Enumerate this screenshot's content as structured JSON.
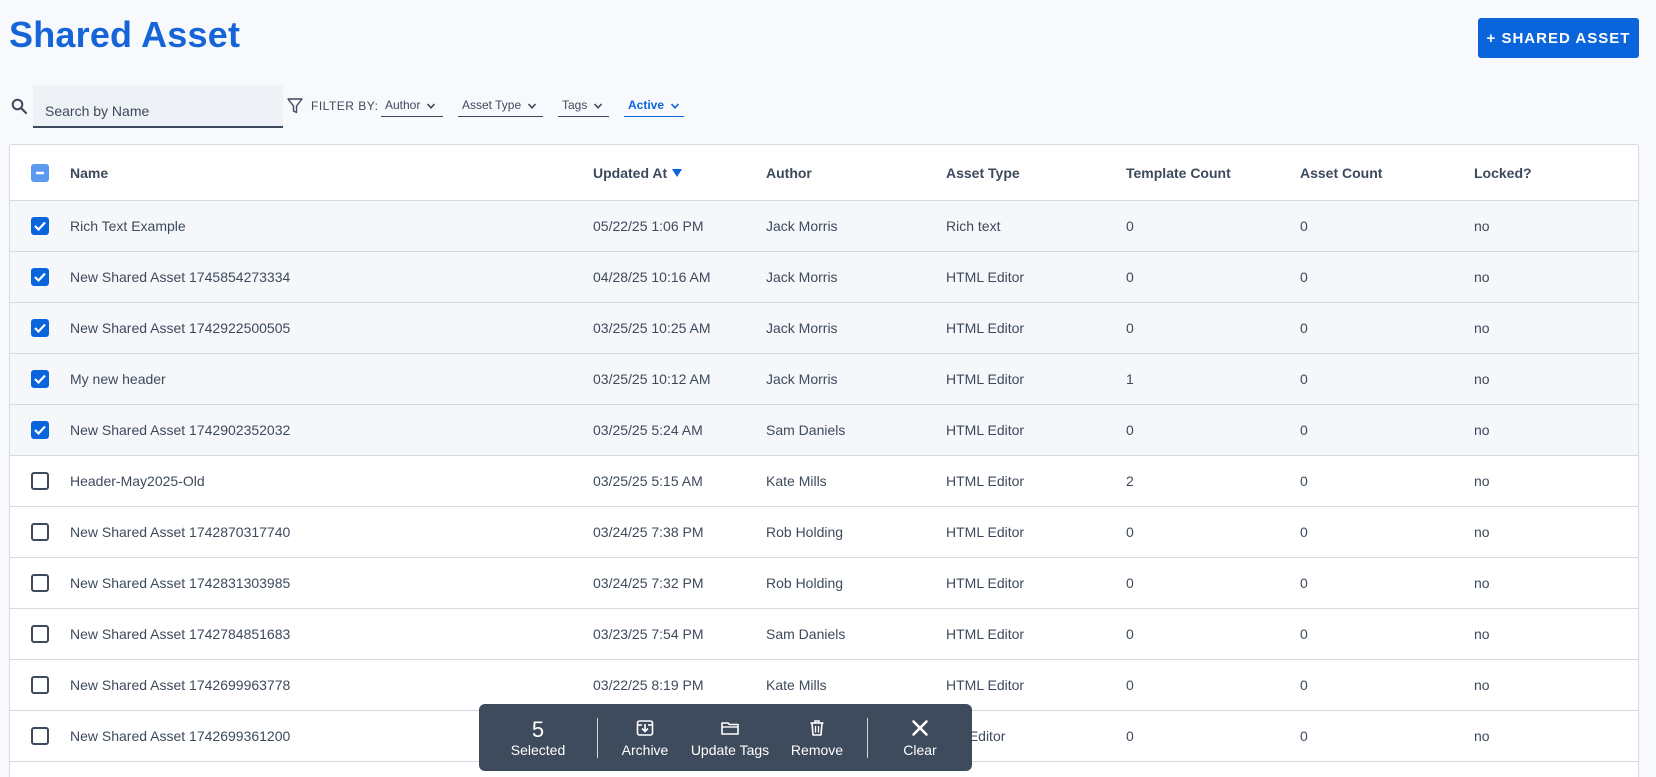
{
  "page": {
    "title": "Shared Asset",
    "add_button_label": "+ SHARED ASSET"
  },
  "search": {
    "placeholder": "Search by Name",
    "value": ""
  },
  "filters": {
    "label": "FILTER BY:",
    "items": [
      {
        "label": "Author",
        "active": false
      },
      {
        "label": "Asset Type",
        "active": false
      },
      {
        "label": "Tags",
        "active": false
      },
      {
        "label": "Active",
        "active": true
      }
    ]
  },
  "table": {
    "columns": [
      "Name",
      "Updated At",
      "Author",
      "Asset Type",
      "Template Count",
      "Asset Count",
      "Locked?"
    ],
    "sort_column": "Updated At",
    "sort_direction": "desc",
    "select_all_state": "indeterminate",
    "rows": [
      {
        "selected": true,
        "name": "Rich Text Example",
        "updated_at": "05/22/25 1:06 PM",
        "author": "Jack Morris",
        "asset_type": "Rich text",
        "template_count": "0",
        "asset_count": "0",
        "locked": "no"
      },
      {
        "selected": true,
        "name": "New Shared Asset 1745854273334",
        "updated_at": "04/28/25 10:16 AM",
        "author": "Jack Morris",
        "asset_type": "HTML Editor",
        "template_count": "0",
        "asset_count": "0",
        "locked": "no"
      },
      {
        "selected": true,
        "name": "New Shared Asset 1742922500505",
        "updated_at": "03/25/25 10:25 AM",
        "author": "Jack Morris",
        "asset_type": "HTML Editor",
        "template_count": "0",
        "asset_count": "0",
        "locked": "no"
      },
      {
        "selected": true,
        "name": "My new header",
        "updated_at": "03/25/25 10:12 AM",
        "author": "Jack Morris",
        "asset_type": "HTML Editor",
        "template_count": "1",
        "asset_count": "0",
        "locked": "no"
      },
      {
        "selected": true,
        "name": "New Shared Asset 1742902352032",
        "updated_at": "03/25/25 5:24 AM",
        "author": "Sam Daniels",
        "asset_type": "HTML Editor",
        "template_count": "0",
        "asset_count": "0",
        "locked": "no"
      },
      {
        "selected": false,
        "name": "Header-May2025-Old",
        "updated_at": "03/25/25 5:15 AM",
        "author": "Kate Mills",
        "asset_type": "HTML Editor",
        "template_count": "2",
        "asset_count": "0",
        "locked": "no"
      },
      {
        "selected": false,
        "name": "New Shared Asset 1742870317740",
        "updated_at": "03/24/25 7:38 PM",
        "author": "Rob Holding",
        "asset_type": "HTML Editor",
        "template_count": "0",
        "asset_count": "0",
        "locked": "no"
      },
      {
        "selected": false,
        "name": "New Shared Asset 1742831303985",
        "updated_at": "03/24/25 7:32 PM",
        "author": "Rob Holding",
        "asset_type": "HTML Editor",
        "template_count": "0",
        "asset_count": "0",
        "locked": "no"
      },
      {
        "selected": false,
        "name": "New Shared Asset 1742784851683",
        "updated_at": "03/23/25 7:54 PM",
        "author": "Sam Daniels",
        "asset_type": "HTML Editor",
        "template_count": "0",
        "asset_count": "0",
        "locked": "no"
      },
      {
        "selected": false,
        "name": "New Shared Asset 1742699963778",
        "updated_at": "03/22/25 8:19 PM",
        "author": "Kate Mills",
        "asset_type": "HTML Editor",
        "template_count": "0",
        "asset_count": "0",
        "locked": "no"
      },
      {
        "selected": false,
        "name": "New Shared Asset 1742699361200",
        "updated_at": "",
        "author": "",
        "asset_type": "ML Editor",
        "template_count": "0",
        "asset_count": "0",
        "locked": "no"
      }
    ]
  },
  "bulk_bar": {
    "count": "5",
    "count_label": "Selected",
    "actions": [
      {
        "label": "Archive",
        "icon": "archive-icon"
      },
      {
        "label": "Update Tags",
        "icon": "folder-icon"
      },
      {
        "label": "Remove",
        "icon": "trash-icon"
      }
    ],
    "clear_label": "Clear",
    "clear_icon": "close-icon"
  },
  "colors": {
    "accent": "#0a64dc",
    "title": "#1565d8",
    "bulk_bar_bg": "#3e4b5c",
    "text": "#3d4a5c"
  }
}
